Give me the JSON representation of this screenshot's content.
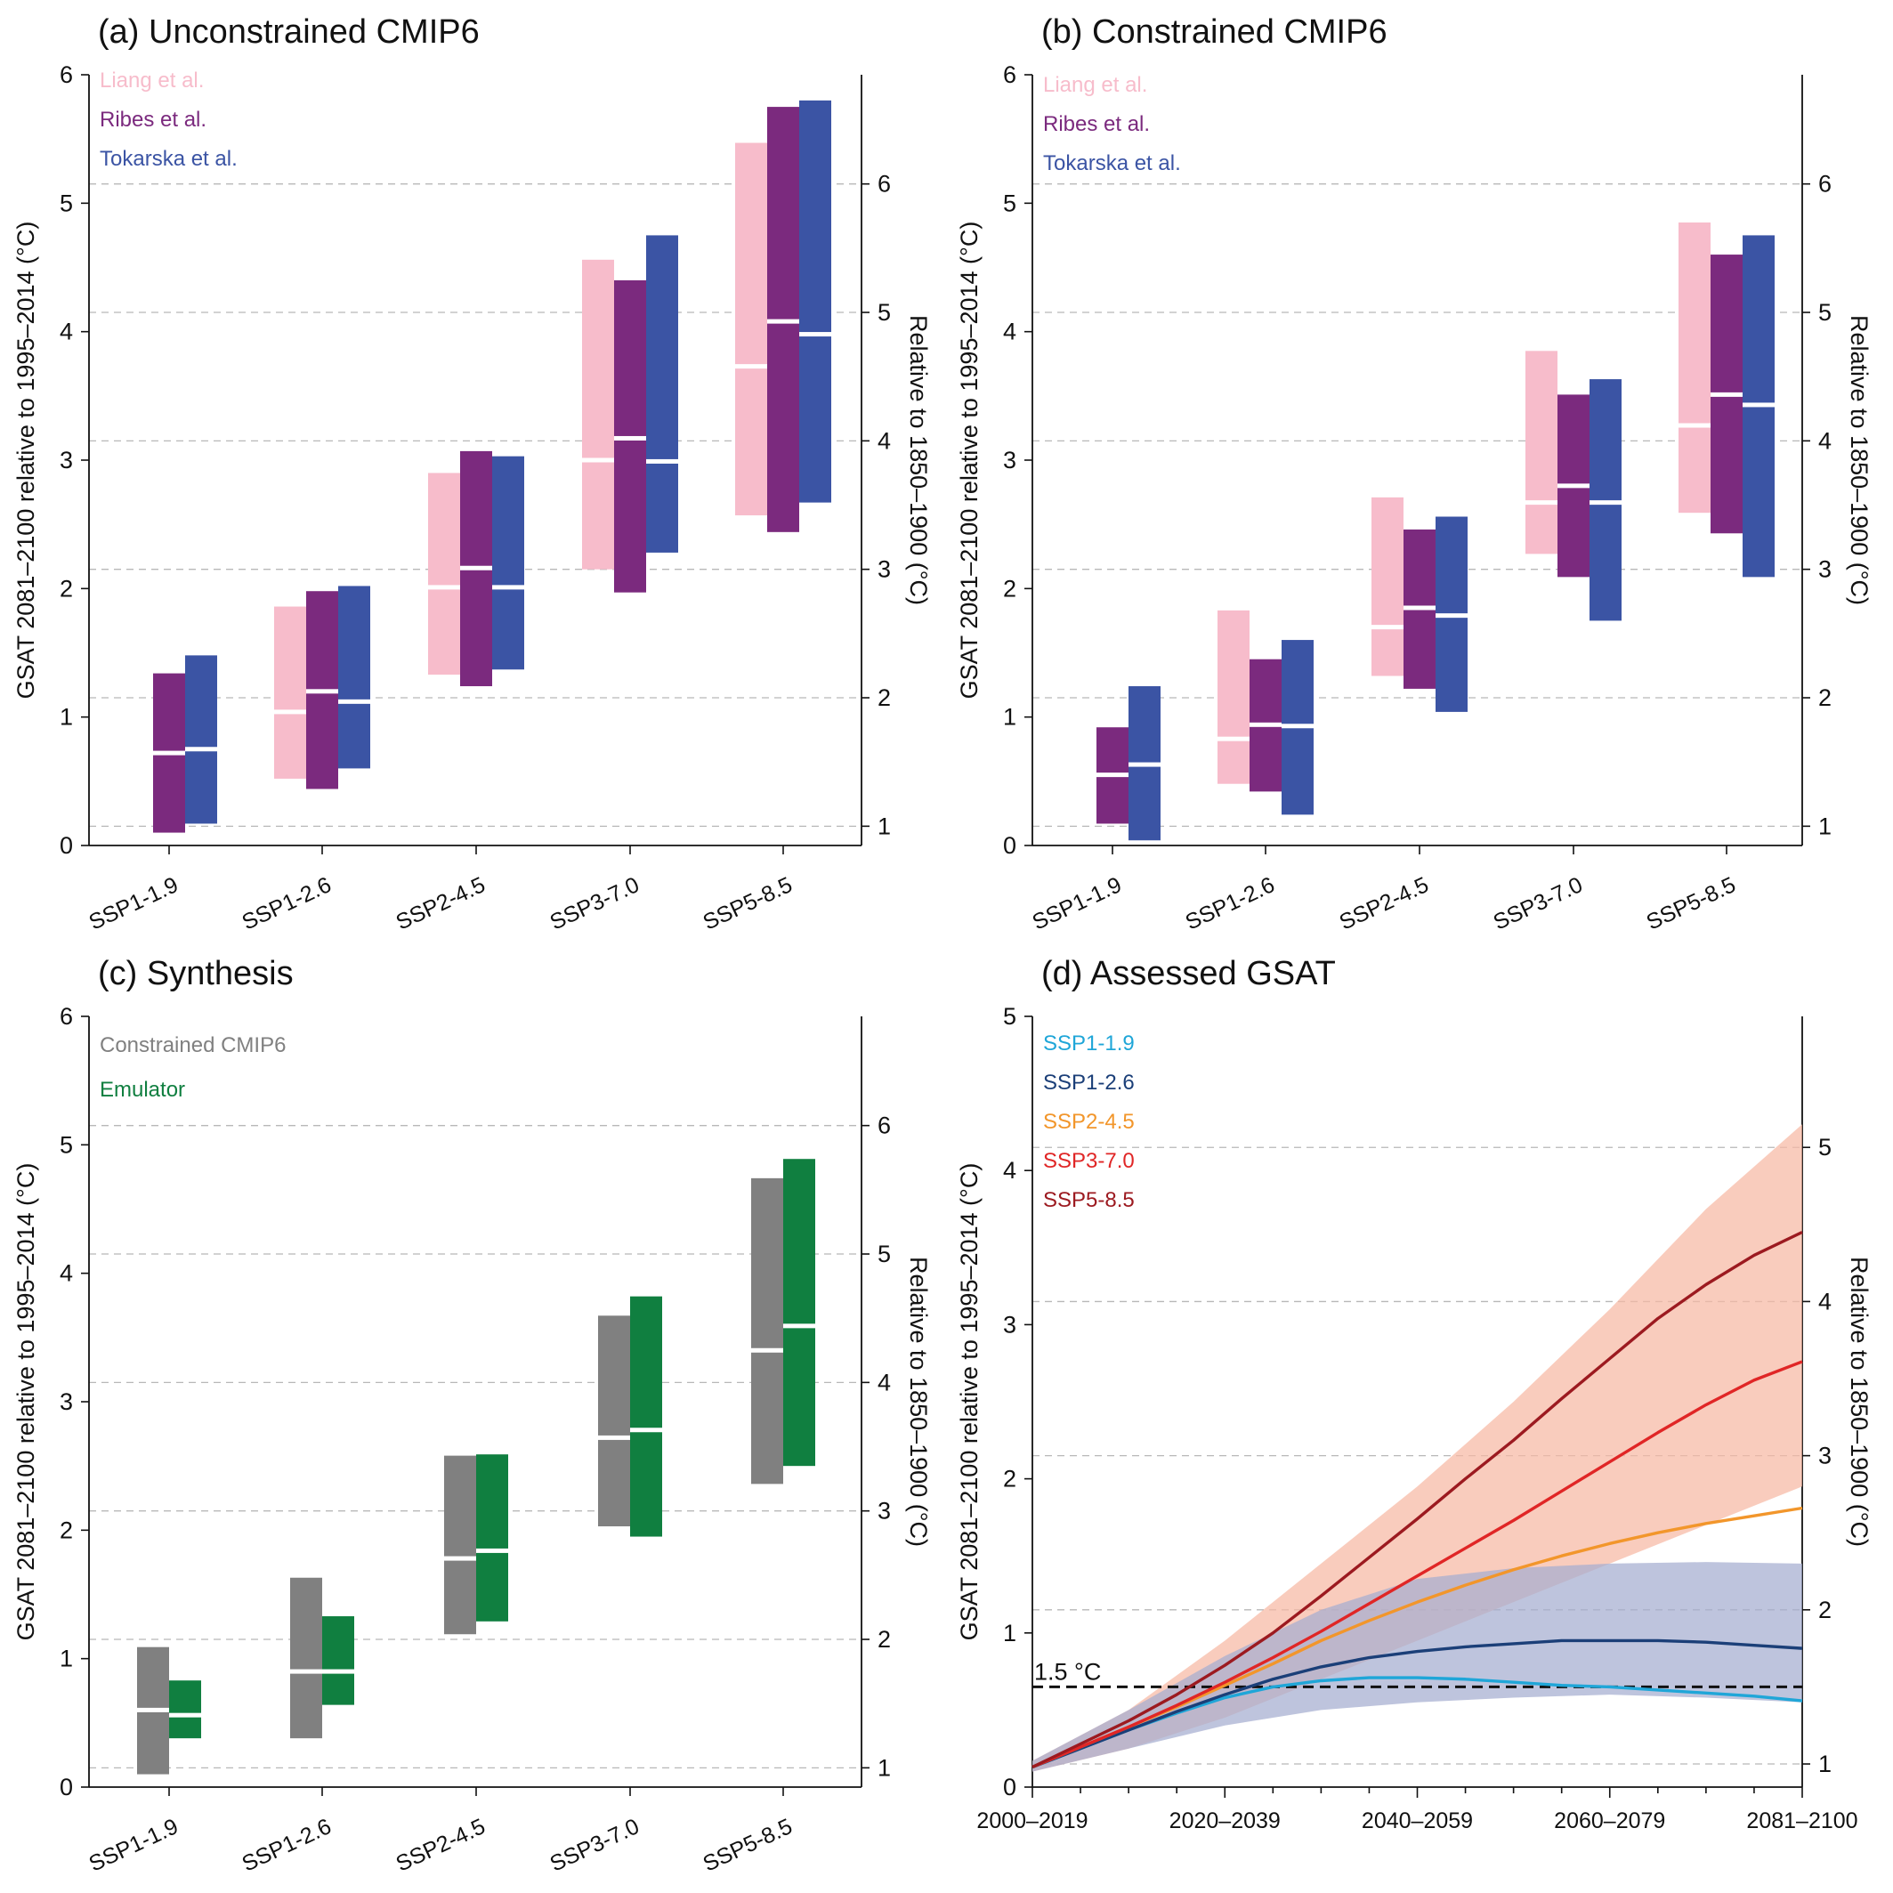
{
  "colors": {
    "liang": "#f7bccb",
    "ribes": "#7b2a7e",
    "tokarska": "#3b54a4",
    "constrained": "#808080",
    "emulator": "#107f40",
    "ssp119": "#1fa6d8",
    "ssp126": "#1b3f78",
    "ssp245": "#f2962b",
    "ssp370": "#e02626",
    "ssp585": "#9c1a20",
    "band_high": "#f6b8a4",
    "band_low": "#a5add0"
  },
  "chart_data": [
    {
      "id": "a",
      "type": "bar",
      "title": "(a)  Unconstrained CMIP6",
      "ylabel": "GSAT 2081–2100 relative to 1995–2014 (°C)",
      "ylabel_right": "Relative to 1850–1900 (°C)",
      "ylim": [
        0,
        6
      ],
      "yticks": [
        "0",
        "1",
        "2",
        "3",
        "4",
        "5",
        "6"
      ],
      "right_offset": 0.85,
      "yticks_right": [
        "1",
        "2",
        "3",
        "4",
        "5",
        "6"
      ],
      "categories": [
        "SSP1-1.9",
        "SSP1-2.6",
        "SSP2-4.5",
        "SSP3-7.0",
        "SSP5-8.5"
      ],
      "series": [
        {
          "name": "Liang et al.",
          "color_key": "liang",
          "low": [
            null,
            0.52,
            1.33,
            2.15,
            2.57
          ],
          "median": [
            null,
            1.04,
            2.01,
            3.0,
            3.73
          ],
          "high": [
            null,
            1.86,
            2.9,
            4.56,
            5.47
          ]
        },
        {
          "name": "Ribes et al.",
          "color_key": "ribes",
          "low": [
            0.1,
            0.44,
            1.24,
            1.97,
            2.44
          ],
          "median": [
            0.72,
            1.2,
            2.16,
            3.17,
            4.08
          ],
          "high": [
            1.34,
            1.98,
            3.07,
            4.4,
            5.75
          ]
        },
        {
          "name": "Tokarska et al.",
          "color_key": "tokarska",
          "low": [
            0.17,
            0.6,
            1.37,
            2.28,
            2.67
          ],
          "median": [
            0.75,
            1.12,
            2.01,
            2.99,
            3.98
          ],
          "high": [
            1.48,
            2.02,
            3.03,
            4.75,
            5.8
          ]
        }
      ]
    },
    {
      "id": "b",
      "type": "bar",
      "title": "(b)  Constrained CMIP6",
      "ylabel": "GSAT 2081–2100 relative to 1995–2014 (°C)",
      "ylabel_right": "Relative to 1850–1900 (°C)",
      "ylim": [
        0,
        6
      ],
      "yticks": [
        "0",
        "1",
        "2",
        "3",
        "4",
        "5",
        "6"
      ],
      "right_offset": 0.85,
      "yticks_right": [
        "1",
        "2",
        "3",
        "4",
        "5",
        "6"
      ],
      "categories": [
        "SSP1-1.9",
        "SSP1-2.6",
        "SSP2-4.5",
        "SSP3-7.0",
        "SSP5-8.5"
      ],
      "series": [
        {
          "name": "Liang et al.",
          "color_key": "liang",
          "low": [
            null,
            0.48,
            1.32,
            2.27,
            2.59
          ],
          "median": [
            null,
            0.83,
            1.7,
            2.67,
            3.27
          ],
          "high": [
            null,
            1.83,
            2.71,
            3.85,
            4.85
          ]
        },
        {
          "name": "Ribes et al.",
          "color_key": "ribes",
          "low": [
            0.17,
            0.42,
            1.22,
            2.09,
            2.43
          ],
          "median": [
            0.55,
            0.94,
            1.85,
            2.8,
            3.51
          ],
          "high": [
            0.92,
            1.45,
            2.46,
            3.51,
            4.6
          ]
        },
        {
          "name": "Tokarska et al.",
          "color_key": "tokarska",
          "low": [
            0.04,
            0.24,
            1.04,
            1.75,
            2.09
          ],
          "median": [
            0.63,
            0.93,
            1.79,
            2.67,
            3.43
          ],
          "high": [
            1.24,
            1.6,
            2.56,
            3.63,
            4.75
          ]
        }
      ]
    },
    {
      "id": "c",
      "type": "bar",
      "title": "(c)  Synthesis",
      "ylabel": "GSAT 2081–2100 relative to 1995–2014 (°C)",
      "ylabel_right": "Relative to 1850–1900 (°C)",
      "ylim": [
        0,
        6
      ],
      "yticks": [
        "0",
        "1",
        "2",
        "3",
        "4",
        "5",
        "6"
      ],
      "right_offset": 0.85,
      "yticks_right": [
        "1",
        "2",
        "3",
        "4",
        "5",
        "6"
      ],
      "categories": [
        "SSP1-1.9",
        "SSP1-2.6",
        "SSP2-4.5",
        "SSP3-7.0",
        "SSP5-8.5"
      ],
      "series": [
        {
          "name": "Constrained CMIP6",
          "color_key": "constrained",
          "low": [
            0.1,
            0.38,
            1.19,
            2.03,
            2.36
          ],
          "median": [
            0.6,
            0.9,
            1.78,
            2.72,
            3.4
          ],
          "high": [
            1.09,
            1.63,
            2.58,
            3.67,
            4.74
          ]
        },
        {
          "name": "Emulator",
          "color_key": "emulator",
          "low": [
            0.38,
            0.64,
            1.29,
            1.95,
            2.5
          ],
          "median": [
            0.56,
            0.9,
            1.84,
            2.78,
            3.59
          ],
          "high": [
            0.83,
            1.33,
            2.59,
            3.82,
            4.89
          ]
        }
      ]
    },
    {
      "id": "d",
      "type": "line",
      "title": "(d)  Assessed GSAT",
      "ylabel": "GSAT 2081–2100 relative to 1995–2014 (°C)",
      "ylabel_right": "Relative to 1850–1900 (°C)",
      "ylim": [
        0,
        5
      ],
      "yticks": [
        "0",
        "1",
        "2",
        "3",
        "4",
        "5"
      ],
      "right_offset": 0.85,
      "yticks_right": [
        "1",
        "2",
        "3",
        "4",
        "5"
      ],
      "xlim": [
        2010,
        2090
      ],
      "xticks": [
        2010,
        2030,
        2050,
        2070,
        2090
      ],
      "xticklabels": [
        "2000–2019",
        "2020–2039",
        "2040–2059",
        "2060–2079",
        "2081–2100"
      ],
      "threshold": {
        "value": 0.65,
        "label": "1.5 °C"
      },
      "x": [
        2010,
        2015,
        2020,
        2025,
        2030,
        2035,
        2040,
        2045,
        2050,
        2055,
        2060,
        2065,
        2070,
        2075,
        2080,
        2085,
        2090
      ],
      "series": [
        {
          "name": "SSP1-1.9",
          "color_key": "ssp119",
          "values": [
            0.13,
            0.25,
            0.37,
            0.48,
            0.58,
            0.65,
            0.69,
            0.71,
            0.71,
            0.7,
            0.68,
            0.66,
            0.65,
            0.63,
            0.61,
            0.59,
            0.56
          ]
        },
        {
          "name": "SSP1-2.6",
          "color_key": "ssp126",
          "values": [
            0.13,
            0.25,
            0.37,
            0.49,
            0.6,
            0.7,
            0.78,
            0.84,
            0.88,
            0.91,
            0.93,
            0.95,
            0.95,
            0.95,
            0.94,
            0.92,
            0.9
          ]
        },
        {
          "name": "SSP2-4.5",
          "color_key": "ssp245",
          "values": [
            0.13,
            0.26,
            0.39,
            0.52,
            0.66,
            0.8,
            0.95,
            1.08,
            1.2,
            1.31,
            1.41,
            1.5,
            1.58,
            1.65,
            1.71,
            1.76,
            1.81
          ]
        },
        {
          "name": "SSP3-7.0",
          "color_key": "ssp370",
          "values": [
            0.13,
            0.26,
            0.39,
            0.53,
            0.68,
            0.84,
            1.01,
            1.19,
            1.37,
            1.55,
            1.73,
            1.92,
            2.11,
            2.3,
            2.48,
            2.64,
            2.76
          ]
        },
        {
          "name": "SSP5-8.5",
          "color_key": "ssp585",
          "values": [
            0.13,
            0.28,
            0.43,
            0.6,
            0.79,
            1.0,
            1.24,
            1.49,
            1.74,
            2.0,
            2.25,
            2.52,
            2.78,
            3.04,
            3.26,
            3.45,
            3.6
          ]
        }
      ],
      "bands": [
        {
          "color_key": "band_high",
          "x": [
            2010,
            2020,
            2030,
            2040,
            2050,
            2060,
            2070,
            2080,
            2090
          ],
          "low": [
            0.1,
            0.25,
            0.45,
            0.7,
            0.95,
            1.2,
            1.45,
            1.7,
            1.95
          ],
          "high": [
            0.17,
            0.5,
            0.95,
            1.45,
            1.95,
            2.5,
            3.1,
            3.75,
            4.3
          ]
        },
        {
          "color_key": "band_low",
          "x": [
            2010,
            2020,
            2030,
            2040,
            2050,
            2060,
            2070,
            2080,
            2090
          ],
          "low": [
            0.1,
            0.25,
            0.4,
            0.5,
            0.55,
            0.58,
            0.6,
            0.58,
            0.55
          ],
          "high": [
            0.17,
            0.5,
            0.85,
            1.15,
            1.35,
            1.42,
            1.45,
            1.46,
            1.45
          ]
        }
      ]
    }
  ]
}
